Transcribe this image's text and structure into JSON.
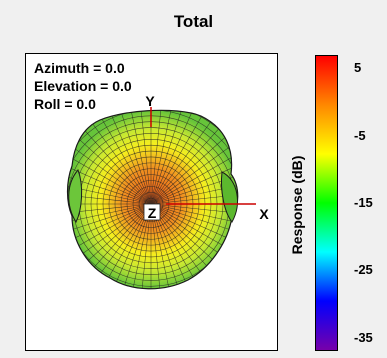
{
  "title": "Total",
  "view": {
    "azimuth": "Azimuth = 0.0",
    "elevation": "Elevation = 0.0",
    "roll": "Roll = 0.0"
  },
  "axes": {
    "x": "X",
    "y": "Y",
    "z": "Z"
  },
  "chart_data": {
    "type": "3d-radiation-pattern",
    "title": "Total",
    "colorbar": {
      "label": "Response  (dB)",
      "range": [
        -37,
        7
      ],
      "ticks": [
        "5",
        "-5",
        "-15",
        "-25",
        "-35"
      ],
      "tick_values": [
        5,
        -5,
        -15,
        -25,
        -35
      ],
      "colormap": [
        "#ff0000",
        "#ff8800",
        "#ffff00",
        "#00ff00",
        "#00ffff",
        "#0000ff",
        "#7700aa"
      ]
    },
    "view": {
      "azimuth": 0.0,
      "elevation": 0.0,
      "roll": 0.0
    },
    "surface_colors": {
      "outer": "#66cc33",
      "mid": "#ffff00",
      "peak": "#ee7722"
    }
  }
}
